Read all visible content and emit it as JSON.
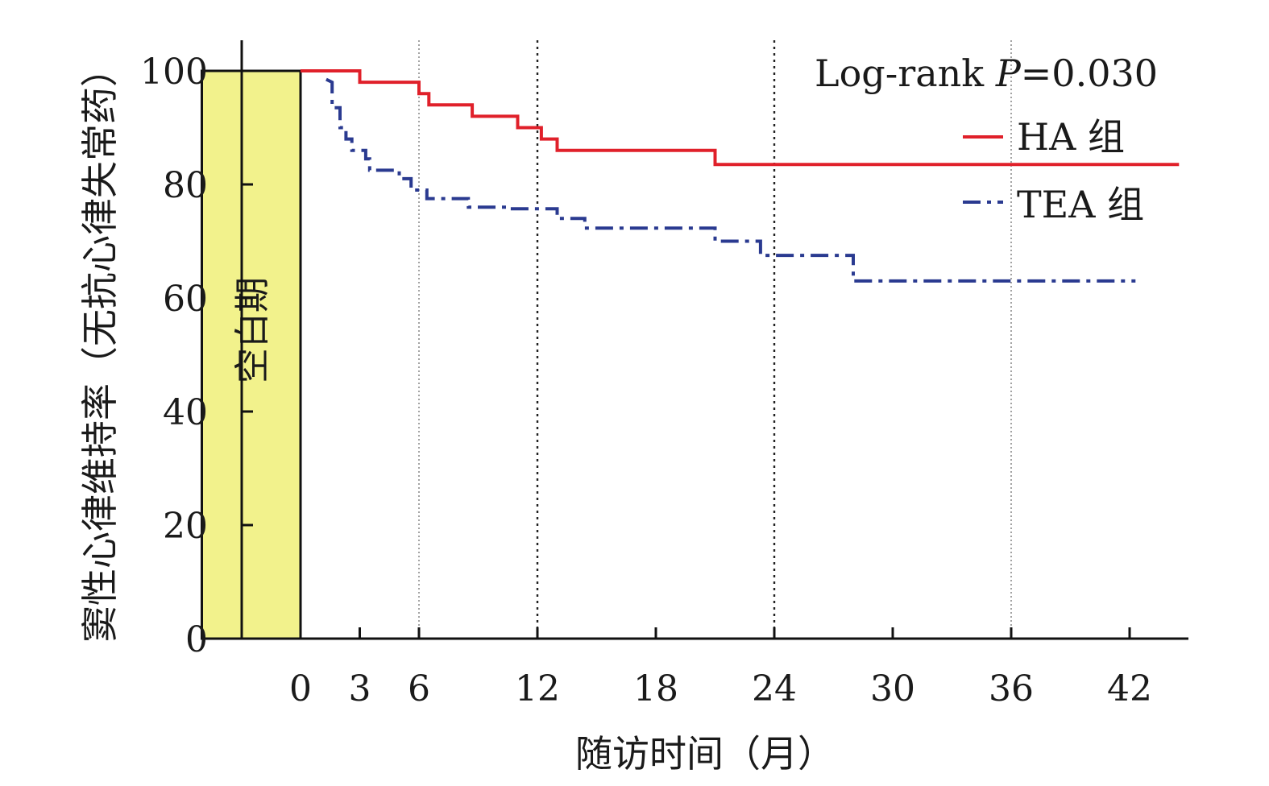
{
  "chart_data": {
    "type": "line",
    "subtype": "kaplan-meier step",
    "xlabel": "随访时间（月）",
    "ylabel": "窦性心律维持率（无抗心律失常药）",
    "x_ticks": [
      0,
      3,
      6,
      12,
      18,
      24,
      30,
      36,
      42
    ],
    "y_ticks": [
      0,
      20,
      40,
      60,
      80,
      100
    ],
    "xlim": [
      -5,
      45
    ],
    "ylim": [
      0,
      100
    ],
    "reference_lines_x": [
      6,
      12,
      24,
      36
    ],
    "blank_period": {
      "label": "空白期",
      "x_range": [
        -5,
        0
      ],
      "color": "#f2f28c"
    },
    "annotation": {
      "prefix": "Log-rank ",
      "italic": "P",
      "suffix": "=0.030"
    },
    "legend_position": "top-right",
    "series": [
      {
        "name": "HA 组",
        "color": "#e0202a",
        "style": "solid",
        "points": [
          [
            0,
            100
          ],
          [
            3,
            100
          ],
          [
            3,
            98
          ],
          [
            6,
            98
          ],
          [
            6,
            96
          ],
          [
            6.5,
            96
          ],
          [
            6.5,
            94
          ],
          [
            8.7,
            94
          ],
          [
            8.7,
            92
          ],
          [
            11,
            92
          ],
          [
            11,
            90
          ],
          [
            12.2,
            90
          ],
          [
            12.2,
            88
          ],
          [
            13,
            88
          ],
          [
            13,
            86
          ],
          [
            21,
            86
          ],
          [
            21,
            83.5
          ],
          [
            44.5,
            83.5
          ]
        ]
      },
      {
        "name": "TEA 组",
        "color": "#2a3a90",
        "style": "dashdot",
        "points": [
          [
            1.3,
            98.5
          ],
          [
            1.6,
            98
          ],
          [
            1.6,
            93.5
          ],
          [
            2,
            93.5
          ],
          [
            2,
            90
          ],
          [
            2.3,
            90
          ],
          [
            2.3,
            88
          ],
          [
            2.6,
            88
          ],
          [
            2.6,
            86
          ],
          [
            3.3,
            86
          ],
          [
            3.3,
            84.5
          ],
          [
            3.5,
            84.5
          ],
          [
            3.5,
            82.5
          ],
          [
            5,
            82.5
          ],
          [
            5,
            81
          ],
          [
            5.6,
            81
          ],
          [
            5.6,
            79
          ],
          [
            6.4,
            79
          ],
          [
            6.4,
            77.5
          ],
          [
            8.5,
            77.5
          ],
          [
            8.5,
            76
          ],
          [
            10.6,
            76
          ],
          [
            10.6,
            75.7
          ],
          [
            13,
            75.7
          ],
          [
            13,
            74
          ],
          [
            14.4,
            74
          ],
          [
            14.4,
            72.3
          ],
          [
            21,
            72.3
          ],
          [
            21,
            70
          ],
          [
            23.3,
            70
          ],
          [
            23.3,
            67.5
          ],
          [
            28,
            67.5
          ],
          [
            28,
            63
          ],
          [
            42.3,
            63
          ]
        ]
      }
    ]
  }
}
